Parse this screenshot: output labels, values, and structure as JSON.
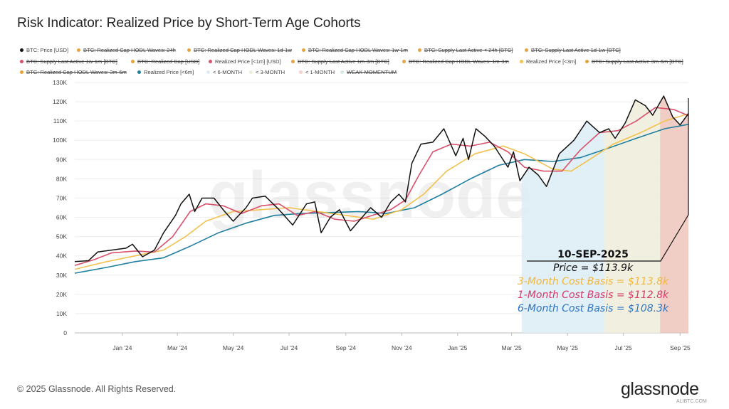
{
  "chart_data": {
    "type": "line",
    "title": "Risk Indicator: Realized Price by Short-Term Age Cohorts",
    "xlabel": "",
    "ylabel": "",
    "xlim": [
      "2023-11-10",
      "2025-09-10"
    ],
    "ylim": [
      0,
      130000
    ],
    "grid": true,
    "y_ticks": [
      {
        "value": 0,
        "label": "0"
      },
      {
        "value": 10000,
        "label": "10K"
      },
      {
        "value": 20000,
        "label": "20K"
      },
      {
        "value": 30000,
        "label": "30K"
      },
      {
        "value": 40000,
        "label": "40K"
      },
      {
        "value": 50000,
        "label": "50K"
      },
      {
        "value": 60000,
        "label": "60K"
      },
      {
        "value": 70000,
        "label": "70K"
      },
      {
        "value": 80000,
        "label": "80K"
      },
      {
        "value": 90000,
        "label": "90K"
      },
      {
        "value": 100000,
        "label": "100K"
      },
      {
        "value": 110000,
        "label": "110K"
      },
      {
        "value": 120000,
        "label": "120K"
      },
      {
        "value": 130000,
        "label": "130K"
      }
    ],
    "x_ticks": [
      {
        "date": "2024-01-01",
        "label": "Jan '24"
      },
      {
        "date": "2024-03-01",
        "label": "Mar '24"
      },
      {
        "date": "2024-05-01",
        "label": "May '24"
      },
      {
        "date": "2024-07-01",
        "label": "Jul '24"
      },
      {
        "date": "2024-09-01",
        "label": "Sep '24"
      },
      {
        "date": "2024-11-01",
        "label": "Nov '24"
      },
      {
        "date": "2025-01-01",
        "label": "Jan '25"
      },
      {
        "date": "2025-03-01",
        "label": "Mar '25"
      },
      {
        "date": "2025-05-01",
        "label": "May '25"
      },
      {
        "date": "2025-07-01",
        "label": "Jul '25"
      },
      {
        "date": "2025-09-01",
        "label": "Sep '25"
      }
    ],
    "legend_placement": "top",
    "legend": [
      {
        "label": "BTC: Price [USD]",
        "color": "#111111",
        "struck": false
      },
      {
        "label": "BTC: Realized Cap HODL Waves: 24h",
        "color": "#e8a33d",
        "struck": true
      },
      {
        "label": "BTC: Realized Cap HODL Waves: 1d-1w",
        "color": "#e8a33d",
        "struck": true
      },
      {
        "label": "BTC: Realized Cap HODL Waves: 1w-1m",
        "color": "#e8a33d",
        "struck": true
      },
      {
        "label": "BTC: Supply Last Active < 24h [BTC]",
        "color": "#e8a33d",
        "struck": true
      },
      {
        "label": "BTC: Supply Last Active 1d-1w [BTC]",
        "color": "#e8a33d",
        "struck": true
      },
      {
        "label": "BTC: Supply Last Active 1w-1m [BTC]",
        "color": "#d9506a",
        "struck": true
      },
      {
        "label": "BTC: Realized Cap [USD]",
        "color": "#e8a33d",
        "struck": true
      },
      {
        "label": "Realized Price [<1m] [USD]",
        "color": "#d9506a",
        "struck": false
      },
      {
        "label": "BTC: Supply Last Active 1m-3m [BTC]",
        "color": "#e8a33d",
        "struck": true
      },
      {
        "label": "BTC: Realized Cap HODL Waves: 1m-3m",
        "color": "#e8a33d",
        "struck": true
      },
      {
        "label": "Realized Price [<3m]",
        "color": "#f2c14e",
        "struck": false
      },
      {
        "label": "BTC: Supply Last Active 3m-6m [BTC]",
        "color": "#e8a33d",
        "struck": true
      },
      {
        "label": "BTC: Realized Cap HODL Waves: 3m-6m",
        "color": "#e8a33d",
        "struck": true
      },
      {
        "label": "Realized Price [<6m]",
        "color": "#1f7f9e",
        "struck": false
      },
      {
        "label": "< 6-MONTH",
        "color": "#dcecf5",
        "struck": false
      },
      {
        "label": "< 3-MONTH",
        "color": "#efedda",
        "struck": false
      },
      {
        "label": "< 1-MONTH",
        "color": "#f3d3cc",
        "struck": false
      },
      {
        "label": "WEAK MOMENTUM",
        "color": "#d6ecdf",
        "struck": true
      }
    ],
    "series": [
      {
        "name": "BTC: Price [USD]",
        "color": "#111111",
        "unit": "k USD",
        "points": [
          [
            "2023-11-10",
            37
          ],
          [
            "2023-11-25",
            37.5
          ],
          [
            "2023-12-05",
            42
          ],
          [
            "2023-12-20",
            43
          ],
          [
            "2024-01-05",
            44
          ],
          [
            "2024-01-12",
            46
          ],
          [
            "2024-01-23",
            39.5
          ],
          [
            "2024-02-05",
            43
          ],
          [
            "2024-02-15",
            52
          ],
          [
            "2024-02-28",
            61
          ],
          [
            "2024-03-05",
            67
          ],
          [
            "2024-03-14",
            72
          ],
          [
            "2024-03-20",
            63
          ],
          [
            "2024-03-28",
            70
          ],
          [
            "2024-04-10",
            70
          ],
          [
            "2024-04-20",
            64
          ],
          [
            "2024-05-01",
            58
          ],
          [
            "2024-05-15",
            65
          ],
          [
            "2024-05-22",
            70
          ],
          [
            "2024-06-05",
            71
          ],
          [
            "2024-06-20",
            64
          ],
          [
            "2024-07-05",
            56
          ],
          [
            "2024-07-20",
            67
          ],
          [
            "2024-07-29",
            68
          ],
          [
            "2024-08-05",
            52
          ],
          [
            "2024-08-15",
            60
          ],
          [
            "2024-08-25",
            64
          ],
          [
            "2024-09-06",
            53
          ],
          [
            "2024-09-15",
            58
          ],
          [
            "2024-09-28",
            65
          ],
          [
            "2024-10-10",
            60
          ],
          [
            "2024-10-20",
            68
          ],
          [
            "2024-10-29",
            72
          ],
          [
            "2024-11-05",
            68
          ],
          [
            "2024-11-12",
            88
          ],
          [
            "2024-11-22",
            98
          ],
          [
            "2024-12-05",
            99
          ],
          [
            "2024-12-17",
            106
          ],
          [
            "2024-12-30",
            92
          ],
          [
            "2025-01-07",
            101
          ],
          [
            "2025-01-13",
            90
          ],
          [
            "2025-01-21",
            106
          ],
          [
            "2025-01-31",
            102
          ],
          [
            "2025-02-10",
            97
          ],
          [
            "2025-02-25",
            86
          ],
          [
            "2025-03-03",
            94
          ],
          [
            "2025-03-10",
            79
          ],
          [
            "2025-03-20",
            86
          ],
          [
            "2025-03-30",
            82
          ],
          [
            "2025-04-08",
            76
          ],
          [
            "2025-04-22",
            93
          ],
          [
            "2025-05-08",
            100
          ],
          [
            "2025-05-22",
            110
          ],
          [
            "2025-06-05",
            104
          ],
          [
            "2025-06-15",
            106
          ],
          [
            "2025-06-22",
            101
          ],
          [
            "2025-07-03",
            109
          ],
          [
            "2025-07-14",
            121
          ],
          [
            "2025-07-25",
            118
          ],
          [
            "2025-08-02",
            113
          ],
          [
            "2025-08-14",
            123
          ],
          [
            "2025-08-24",
            112
          ],
          [
            "2025-09-01",
            108
          ],
          [
            "2025-09-10",
            113.9
          ]
        ]
      },
      {
        "name": "Realized Price [<1m] [USD]",
        "color": "#d9506a",
        "unit": "k USD",
        "points": [
          [
            "2023-11-10",
            35
          ],
          [
            "2023-12-01",
            38
          ],
          [
            "2023-12-20",
            41.5
          ],
          [
            "2024-01-15",
            42.5
          ],
          [
            "2024-02-05",
            42
          ],
          [
            "2024-02-25",
            50
          ],
          [
            "2024-03-15",
            63
          ],
          [
            "2024-04-01",
            67
          ],
          [
            "2024-04-20",
            66
          ],
          [
            "2024-05-10",
            62
          ],
          [
            "2024-06-01",
            66
          ],
          [
            "2024-06-20",
            67
          ],
          [
            "2024-07-10",
            61
          ],
          [
            "2024-07-30",
            63
          ],
          [
            "2024-08-20",
            59
          ],
          [
            "2024-09-10",
            58
          ],
          [
            "2024-09-30",
            61
          ],
          [
            "2024-10-20",
            64
          ],
          [
            "2024-11-05",
            69
          ],
          [
            "2024-11-20",
            82
          ],
          [
            "2024-12-05",
            94
          ],
          [
            "2024-12-25",
            98
          ],
          [
            "2025-01-15",
            97
          ],
          [
            "2025-02-05",
            99
          ],
          [
            "2025-02-25",
            94
          ],
          [
            "2025-03-15",
            86
          ],
          [
            "2025-04-05",
            84
          ],
          [
            "2025-04-25",
            84
          ],
          [
            "2025-05-15",
            95
          ],
          [
            "2025-06-05",
            104
          ],
          [
            "2025-06-25",
            105
          ],
          [
            "2025-07-15",
            110
          ],
          [
            "2025-08-05",
            117
          ],
          [
            "2025-08-25",
            116
          ],
          [
            "2025-09-10",
            112.8
          ]
        ]
      },
      {
        "name": "Realized Price [<3m]",
        "color": "#f2c14e",
        "unit": "k USD",
        "points": [
          [
            "2023-11-10",
            33
          ],
          [
            "2023-12-15",
            37
          ],
          [
            "2024-01-15",
            40
          ],
          [
            "2024-02-15",
            43
          ],
          [
            "2024-03-10",
            50
          ],
          [
            "2024-04-01",
            58
          ],
          [
            "2024-05-01",
            63
          ],
          [
            "2024-06-01",
            64
          ],
          [
            "2024-07-01",
            65
          ],
          [
            "2024-08-01",
            63
          ],
          [
            "2024-09-01",
            61
          ],
          [
            "2024-10-01",
            59
          ],
          [
            "2024-11-01",
            64
          ],
          [
            "2024-11-25",
            72
          ],
          [
            "2024-12-20",
            84
          ],
          [
            "2025-01-20",
            93
          ],
          [
            "2025-02-20",
            97
          ],
          [
            "2025-03-15",
            93
          ],
          [
            "2025-04-15",
            85
          ],
          [
            "2025-05-05",
            84
          ],
          [
            "2025-05-25",
            90
          ],
          [
            "2025-06-20",
            98
          ],
          [
            "2025-07-20",
            104
          ],
          [
            "2025-08-15",
            110
          ],
          [
            "2025-09-10",
            113.8
          ]
        ]
      },
      {
        "name": "Realized Price [<6m]",
        "color": "#1f7f9e",
        "unit": "k USD",
        "points": [
          [
            "2023-11-10",
            31
          ],
          [
            "2023-12-15",
            34
          ],
          [
            "2024-01-15",
            37
          ],
          [
            "2024-02-15",
            39
          ],
          [
            "2024-03-15",
            45
          ],
          [
            "2024-04-15",
            52
          ],
          [
            "2024-05-15",
            57
          ],
          [
            "2024-06-15",
            61
          ],
          [
            "2024-07-15",
            62
          ],
          [
            "2024-08-15",
            62.5
          ],
          [
            "2024-09-15",
            63
          ],
          [
            "2024-10-15",
            62
          ],
          [
            "2024-11-15",
            65
          ],
          [
            "2024-12-15",
            72
          ],
          [
            "2025-01-15",
            80
          ],
          [
            "2025-02-15",
            87
          ],
          [
            "2025-03-15",
            90
          ],
          [
            "2025-04-15",
            89
          ],
          [
            "2025-05-15",
            91
          ],
          [
            "2025-06-15",
            96
          ],
          [
            "2025-07-15",
            101
          ],
          [
            "2025-08-15",
            106
          ],
          [
            "2025-09-10",
            108.3
          ]
        ]
      }
    ],
    "regions": [
      {
        "label": "< 6-MONTH",
        "from": "2025-03-12",
        "to": "2025-06-10",
        "color": "#dcecf5"
      },
      {
        "label": "< 3-MONTH",
        "from": "2025-06-10",
        "to": "2025-08-10",
        "color": "#efedda"
      },
      {
        "label": "< 1-MONTH",
        "from": "2025-08-10",
        "to": "2025-09-10",
        "color": "#efc6bb"
      }
    ],
    "annotation": {
      "date_label": "10-SEP-2025",
      "price": "Price = $113.9k",
      "cb3": "3-Month Cost Basis = $113.8k",
      "cb1": "1-Month Cost Basis = $112.8k",
      "cb6": "6-Month Cost Basis =  $108.3k",
      "cb3_color": "#f2b63c",
      "cb1_color": "#d63a6a",
      "cb6_color": "#2f74c0"
    },
    "watermark": "glassnode"
  },
  "footer": {
    "copyright": "© 2025 Glassnode. All Rights Reserved.",
    "logo": "glassnode",
    "site": "ALIBTC.COM"
  }
}
